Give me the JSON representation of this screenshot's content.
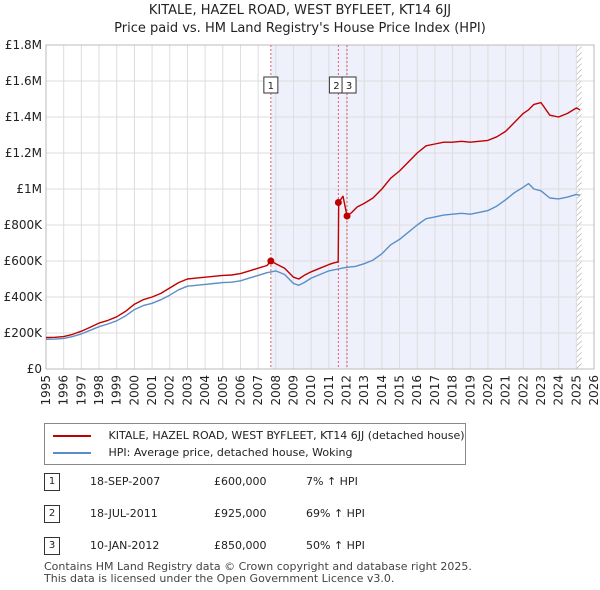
{
  "chart_data": {
    "type": "line",
    "title": "KITALE, HAZEL ROAD, WEST BYFLEET, KT14 6JJ",
    "subtitle": "Price paid vs. HM Land Registry's House Price Index (HPI)",
    "xlabel": "",
    "ylabel": "",
    "xlim": [
      1995,
      2026
    ],
    "ylim": [
      0,
      1800000
    ],
    "x_ticks": [
      1995,
      1996,
      1997,
      1998,
      1999,
      2000,
      2001,
      2002,
      2003,
      2004,
      2005,
      2006,
      2007,
      2008,
      2009,
      2010,
      2011,
      2012,
      2013,
      2014,
      2015,
      2016,
      2017,
      2018,
      2019,
      2020,
      2021,
      2022,
      2023,
      2024,
      2025,
      2026
    ],
    "y_ticks": [
      0,
      200000,
      400000,
      600000,
      800000,
      1000000,
      1200000,
      1400000,
      1600000,
      1800000
    ],
    "y_tick_labels": [
      "£0",
      "£200K",
      "£400K",
      "£600K",
      "£800K",
      "£1M",
      "£1.2M",
      "£1.4M",
      "£1.6M",
      "£1.8M"
    ],
    "grid": true,
    "shaded_region": {
      "from": 2007.72,
      "to": 2025.0
    },
    "projection_region": {
      "from": 2025.0,
      "to": 2025.3
    },
    "series": [
      {
        "name": "KITALE, HAZEL ROAD, WEST BYFLEET, KT14 6JJ (detached house)",
        "color": "#c00000",
        "x": [
          1995.0,
          1995.5,
          1996.0,
          1996.5,
          1997.0,
          1997.5,
          1998.0,
          1998.5,
          1999.0,
          1999.5,
          2000.0,
          2000.5,
          2001.0,
          2001.5,
          2002.0,
          2002.5,
          2003.0,
          2003.5,
          2004.0,
          2004.5,
          2005.0,
          2005.5,
          2006.0,
          2006.5,
          2007.0,
          2007.5,
          2007.72,
          2008.0,
          2008.5,
          2009.0,
          2009.3,
          2009.6,
          2010.0,
          2010.5,
          2011.0,
          2011.3,
          2011.53,
          2011.56,
          2011.8,
          2012.03,
          2012.3,
          2012.6,
          2013.0,
          2013.5,
          2014.0,
          2014.5,
          2015.0,
          2015.5,
          2016.0,
          2016.5,
          2017.0,
          2017.5,
          2018.0,
          2018.5,
          2019.0,
          2019.5,
          2020.0,
          2020.5,
          2021.0,
          2021.5,
          2022.0,
          2022.3,
          2022.6,
          2023.0,
          2023.5,
          2024.0,
          2024.5,
          2025.0,
          2025.2
        ],
        "y": [
          175000,
          176000,
          180000,
          192000,
          210000,
          232000,
          255000,
          270000,
          290000,
          320000,
          360000,
          385000,
          400000,
          420000,
          450000,
          480000,
          500000,
          505000,
          510000,
          515000,
          520000,
          522000,
          530000,
          545000,
          560000,
          575000,
          600000,
          585000,
          560000,
          510000,
          500000,
          520000,
          540000,
          560000,
          580000,
          590000,
          595000,
          925000,
          960000,
          850000,
          870000,
          900000,
          920000,
          950000,
          1000000,
          1060000,
          1100000,
          1150000,
          1200000,
          1240000,
          1250000,
          1260000,
          1260000,
          1265000,
          1260000,
          1265000,
          1270000,
          1290000,
          1320000,
          1370000,
          1420000,
          1440000,
          1470000,
          1480000,
          1410000,
          1400000,
          1420000,
          1450000,
          1440000
        ]
      },
      {
        "name": "HPI: Average price, detached house, Woking",
        "color": "#5b8ec6",
        "x": [
          1995.0,
          1995.5,
          1996.0,
          1996.5,
          1997.0,
          1997.5,
          1998.0,
          1998.5,
          1999.0,
          1999.5,
          2000.0,
          2000.5,
          2001.0,
          2001.5,
          2002.0,
          2002.5,
          2003.0,
          2003.5,
          2004.0,
          2004.5,
          2005.0,
          2005.5,
          2006.0,
          2006.5,
          2007.0,
          2007.5,
          2008.0,
          2008.5,
          2009.0,
          2009.3,
          2009.6,
          2010.0,
          2010.5,
          2011.0,
          2011.5,
          2012.0,
          2012.5,
          2013.0,
          2013.5,
          2014.0,
          2014.5,
          2015.0,
          2015.5,
          2016.0,
          2016.5,
          2017.0,
          2017.5,
          2018.0,
          2018.5,
          2019.0,
          2019.5,
          2020.0,
          2020.5,
          2021.0,
          2021.5,
          2022.0,
          2022.3,
          2022.6,
          2023.0,
          2023.5,
          2024.0,
          2024.5,
          2025.0,
          2025.2
        ],
        "y": [
          165000,
          166000,
          170000,
          180000,
          195000,
          215000,
          235000,
          250000,
          268000,
          295000,
          330000,
          352000,
          365000,
          385000,
          410000,
          440000,
          460000,
          465000,
          470000,
          475000,
          480000,
          482000,
          490000,
          505000,
          520000,
          535000,
          545000,
          525000,
          475000,
          465000,
          480000,
          505000,
          525000,
          545000,
          555000,
          565000,
          570000,
          585000,
          605000,
          640000,
          690000,
          720000,
          760000,
          800000,
          835000,
          845000,
          855000,
          860000,
          865000,
          860000,
          870000,
          880000,
          905000,
          940000,
          980000,
          1010000,
          1030000,
          1000000,
          990000,
          950000,
          945000,
          955000,
          970000,
          965000
        ]
      }
    ],
    "markers": [
      {
        "label": "1",
        "x": 2007.72,
        "y": 600000
      },
      {
        "label": "2",
        "x": 2011.54,
        "y": 925000
      },
      {
        "label": "3",
        "x": 2012.03,
        "y": 850000
      }
    ]
  },
  "legend": {
    "property_label": "KITALE, HAZEL ROAD, WEST BYFLEET, KT14 6JJ (detached house)",
    "hpi_label": "HPI: Average price, detached house, Woking"
  },
  "transactions": [
    {
      "id": "1",
      "date": "18-SEP-2007",
      "price": "£600,000",
      "hpi": "7% ↑ HPI"
    },
    {
      "id": "2",
      "date": "18-JUL-2011",
      "price": "£925,000",
      "hpi": "69% ↑ HPI"
    },
    {
      "id": "3",
      "date": "10-JAN-2012",
      "price": "£850,000",
      "hpi": "50% ↑ HPI"
    }
  ],
  "footer": {
    "line1": "Contains HM Land Registry data © Crown copyright and database right 2025.",
    "line2": "This data is licensed under the Open Government Licence v3.0."
  }
}
